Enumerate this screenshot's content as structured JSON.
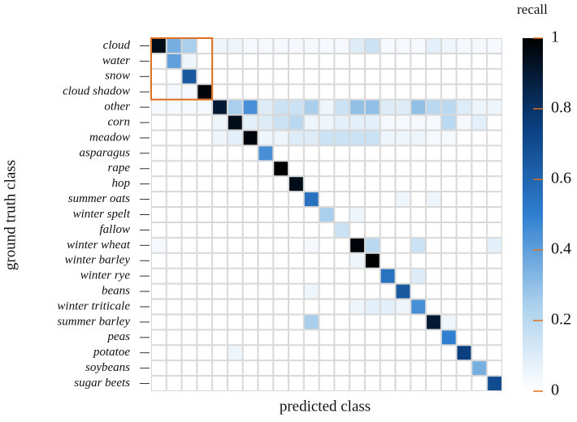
{
  "chart_data": {
    "type": "heatmap",
    "xlabel": "predicted class",
    "ylabel": "ground truth class",
    "colorbar_label": "recall",
    "categories": [
      "cloud",
      "water",
      "snow",
      "cloud shadow",
      "other",
      "corn",
      "meadow",
      "asparagus",
      "rape",
      "hop",
      "summer oats",
      "winter spelt",
      "fallow",
      "winter wheat",
      "winter barley",
      "winter rye",
      "beans",
      "winter triticale",
      "summer barley",
      "peas",
      "potatoe",
      "soybeans",
      "sugar beets"
    ],
    "values": [
      [
        0.95,
        0.35,
        0.25,
        0,
        0.05,
        0.05,
        0.03,
        0.03,
        0.03,
        0.03,
        0.03,
        0.03,
        0.03,
        0.1,
        0.15,
        0.03,
        0.03,
        0.03,
        0.08,
        0.05,
        0.03,
        0.03,
        0.03
      ],
      [
        0,
        0.4,
        0.05,
        0,
        0,
        0,
        0,
        0,
        0,
        0,
        0,
        0,
        0,
        0,
        0,
        0,
        0,
        0,
        0,
        0,
        0,
        0,
        0
      ],
      [
        0,
        0,
        0.65,
        0,
        0,
        0,
        0,
        0,
        0,
        0,
        0,
        0,
        0,
        0,
        0,
        0,
        0,
        0,
        0,
        0,
        0,
        0,
        0
      ],
      [
        0,
        0.03,
        0.03,
        0.98,
        0,
        0,
        0,
        0,
        0,
        0,
        0,
        0,
        0,
        0,
        0,
        0,
        0,
        0,
        0,
        0,
        0,
        0,
        0
      ],
      [
        0.03,
        0.03,
        0.03,
        0.03,
        0.9,
        0.25,
        0.45,
        0.1,
        0.15,
        0.15,
        0.25,
        0.05,
        0.15,
        0.3,
        0.3,
        0.1,
        0.1,
        0.3,
        0.2,
        0.2,
        0.1,
        0.05,
        0.05
      ],
      [
        0,
        0,
        0,
        0,
        0.05,
        0.95,
        0.08,
        0.1,
        0.15,
        0.2,
        0.05,
        0.05,
        0.08,
        0.08,
        0.08,
        0.03,
        0.03,
        0.03,
        0.03,
        0.2,
        0.03,
        0.08,
        0
      ],
      [
        0,
        0,
        0,
        0,
        0.05,
        0.08,
        0.98,
        0.05,
        0.05,
        0.1,
        0.1,
        0.15,
        0.15,
        0.15,
        0.15,
        0.05,
        0.05,
        0.05,
        0.03,
        0.03,
        0,
        0,
        0
      ],
      [
        0,
        0,
        0,
        0,
        0,
        0,
        0,
        0.45,
        0,
        0,
        0,
        0,
        0,
        0,
        0,
        0,
        0,
        0,
        0,
        0,
        0,
        0,
        0
      ],
      [
        0,
        0,
        0,
        0,
        0,
        0,
        0,
        0,
        1,
        0,
        0,
        0,
        0,
        0,
        0,
        0,
        0,
        0,
        0,
        0,
        0,
        0,
        0
      ],
      [
        0,
        0,
        0,
        0,
        0,
        0,
        0,
        0,
        0,
        0.95,
        0,
        0,
        0,
        0,
        0,
        0,
        0,
        0,
        0,
        0,
        0,
        0,
        0
      ],
      [
        0,
        0,
        0,
        0,
        0,
        0,
        0,
        0,
        0,
        0,
        0.55,
        0,
        0,
        0,
        0,
        0,
        0.05,
        0,
        0.05,
        0,
        0,
        0,
        0
      ],
      [
        0,
        0,
        0,
        0,
        0,
        0,
        0,
        0,
        0,
        0,
        0,
        0.25,
        0,
        0.05,
        0,
        0,
        0,
        0,
        0,
        0,
        0,
        0,
        0
      ],
      [
        0,
        0,
        0,
        0,
        0,
        0,
        0,
        0,
        0,
        0,
        0,
        0,
        0.15,
        0,
        0,
        0,
        0,
        0,
        0,
        0,
        0,
        0,
        0
      ],
      [
        0.03,
        0,
        0,
        0,
        0,
        0,
        0,
        0,
        0,
        0,
        0.03,
        0,
        0,
        0.98,
        0.2,
        0,
        0,
        0.15,
        0,
        0,
        0,
        0,
        0.08
      ],
      [
        0,
        0,
        0,
        0,
        0,
        0,
        0,
        0,
        0,
        0,
        0,
        0,
        0,
        0.05,
        1,
        0,
        0,
        0,
        0,
        0,
        0,
        0,
        0
      ],
      [
        0,
        0,
        0,
        0,
        0,
        0,
        0,
        0,
        0,
        0,
        0,
        0,
        0,
        0,
        0,
        0.55,
        0,
        0.1,
        0,
        0,
        0,
        0,
        0
      ],
      [
        0,
        0,
        0,
        0,
        0,
        0,
        0,
        0,
        0,
        0,
        0.05,
        0,
        0,
        0,
        0,
        0,
        0.65,
        0,
        0,
        0,
        0,
        0,
        0
      ],
      [
        0,
        0,
        0,
        0,
        0,
        0,
        0,
        0,
        0,
        0,
        0,
        0,
        0,
        0.05,
        0.08,
        0.08,
        0.05,
        0.45,
        0,
        0,
        0,
        0,
        0
      ],
      [
        0,
        0,
        0,
        0,
        0,
        0,
        0,
        0,
        0,
        0,
        0.25,
        0,
        0,
        0,
        0,
        0,
        0,
        0,
        0.9,
        0.05,
        0,
        0,
        0
      ],
      [
        0,
        0,
        0,
        0,
        0,
        0,
        0,
        0,
        0,
        0,
        0,
        0,
        0,
        0,
        0,
        0,
        0,
        0,
        0,
        0.5,
        0,
        0,
        0
      ],
      [
        0,
        0,
        0,
        0,
        0,
        0.05,
        0,
        0,
        0,
        0,
        0,
        0,
        0,
        0,
        0,
        0,
        0,
        0,
        0,
        0,
        0.75,
        0,
        0
      ],
      [
        0,
        0,
        0,
        0,
        0,
        0,
        0,
        0,
        0,
        0,
        0,
        0,
        0,
        0,
        0,
        0,
        0,
        0,
        0,
        0,
        0,
        0.35,
        0
      ],
      [
        0,
        0,
        0,
        0,
        0,
        0,
        0,
        0,
        0,
        0,
        0,
        0,
        0,
        0,
        0,
        0,
        0,
        0,
        0,
        0,
        0,
        0,
        0.7
      ]
    ],
    "zlim": [
      0,
      1
    ],
    "zticks": [
      0,
      0.2,
      0.4,
      0.6,
      0.8,
      1
    ],
    "colorscale": [
      "#ffffff",
      "#a9cfec",
      "#2f7fd0",
      "#0b3f80",
      "#000000"
    ]
  }
}
